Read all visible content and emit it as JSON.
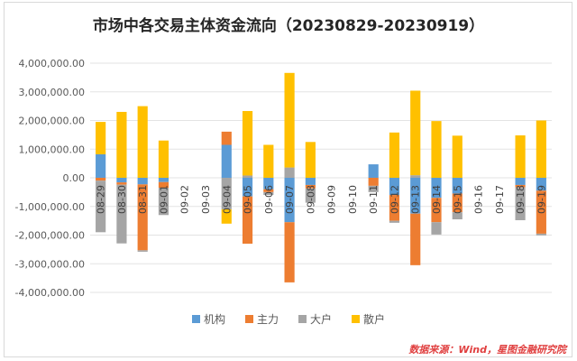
{
  "chart_data": {
    "type": "bar",
    "stacked": true,
    "title": "市场中各交易主体资金流向（20230829-20230919）",
    "categories": [
      "08-29",
      "08-30",
      "08-31",
      "09-01",
      "09-02",
      "09-03",
      "09-04",
      "09-05",
      "09-06",
      "09-07",
      "09-08",
      "09-09",
      "09-10",
      "09-11",
      "09-12",
      "09-13",
      "09-14",
      "09-15",
      "09-16",
      "09-17",
      "09-18",
      "09-19"
    ],
    "series": [
      {
        "name": "机构",
        "color": "#5b9bd5",
        "values": [
          820000,
          -160000,
          -230000,
          -150000,
          0,
          0,
          1150000,
          -650000,
          -400000,
          -1550000,
          -250000,
          0,
          0,
          470000,
          -600000,
          -1250000,
          -700000,
          -550000,
          0,
          0,
          -250000,
          -450000
        ]
      },
      {
        "name": "主力",
        "color": "#ed7d31",
        "values": [
          -100000,
          -80000,
          -2300000,
          -200000,
          0,
          0,
          460000,
          -1650000,
          -100000,
          -2100000,
          -120000,
          0,
          0,
          -280000,
          -900000,
          -1800000,
          -850000,
          -650000,
          0,
          0,
          -80000,
          -1500000
        ]
      },
      {
        "name": "大户",
        "color": "#a5a5a5",
        "values": [
          -1800000,
          -2050000,
          -50000,
          -950000,
          0,
          0,
          -1100000,
          80000,
          -100000,
          360000,
          -500000,
          0,
          0,
          -220000,
          -70000,
          90000,
          -430000,
          -250000,
          0,
          0,
          -1150000,
          -60000
        ]
      },
      {
        "name": "散户",
        "color": "#ffc000",
        "values": [
          1130000,
          2300000,
          2500000,
          1300000,
          0,
          0,
          -500000,
          2250000,
          1150000,
          3300000,
          1250000,
          0,
          0,
          0,
          1580000,
          2950000,
          1980000,
          1470000,
          0,
          0,
          1480000,
          2000000
        ]
      }
    ],
    "ylim": [
      -4000000,
      4000000
    ],
    "yticks": [
      4000000,
      3000000,
      2000000,
      1000000,
      0,
      -1000000,
      -2000000,
      -3000000,
      -4000000
    ],
    "ytick_labels": [
      "4,000,000.00",
      "3,000,000.00",
      "2,000,000.00",
      "1,000,000.00",
      "0.00",
      "-1,000,000.00",
      "-2,000,000.00",
      "-3,000,000.00",
      "-4,000,000.00"
    ],
    "grid": true,
    "legend_position": "bottom"
  },
  "source_text": "数据来源：Wind，星图金融研究院"
}
